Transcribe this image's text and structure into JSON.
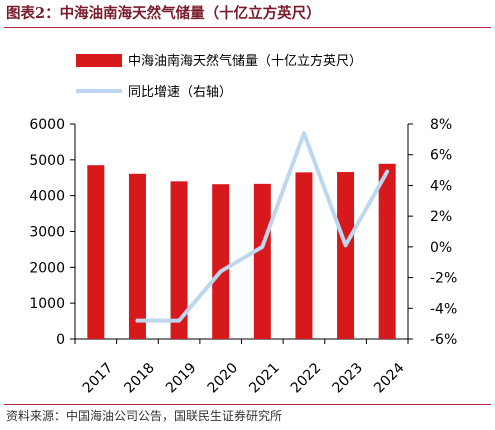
{
  "figure": {
    "title": "图表2：中海油南海天然气储量（十亿立方英尺）",
    "source": "资料来源：中国海油公司公告，国联民生证券研究所"
  },
  "chart_data": {
    "type": "bar",
    "categories": [
      "2017",
      "2018",
      "2019",
      "2020",
      "2021",
      "2022",
      "2023",
      "2024"
    ],
    "series": [
      {
        "name": "中海油南海天然气储量（十亿立方英尺）",
        "type": "bar",
        "axis": "left",
        "color": "#d7191c",
        "values": [
          4850,
          4610,
          4400,
          4320,
          4330,
          4650,
          4660,
          4890
        ]
      },
      {
        "name": "同比增速（右轴）",
        "type": "line",
        "axis": "right",
        "color": "#bdd7ee",
        "values": [
          null,
          -4.8,
          -4.8,
          -1.6,
          0.0,
          7.4,
          0.1,
          4.9
        ]
      }
    ],
    "ylim_left": [
      0,
      6000
    ],
    "yticks_left": [
      "0",
      "1000",
      "2000",
      "3000",
      "4000",
      "5000",
      "6000"
    ],
    "ylim_right": [
      -6,
      8
    ],
    "yticks_right": [
      "-6%",
      "-4%",
      "-2%",
      "0%",
      "2%",
      "4%",
      "6%",
      "8%"
    ],
    "grid": false,
    "legend_position": "top-center"
  }
}
